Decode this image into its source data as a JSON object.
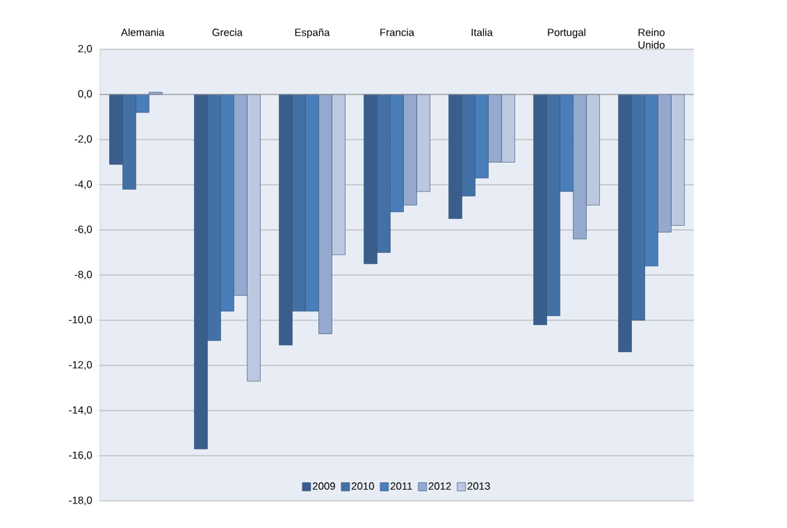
{
  "chart_data": {
    "type": "bar",
    "categories": [
      "Alemania",
      "Grecia",
      "España",
      "Francia",
      "Italia",
      "Portugal",
      "Reino Unido"
    ],
    "series": [
      {
        "name": "2009",
        "color": "#3a5e8c",
        "values": [
          -3.1,
          -15.7,
          -11.1,
          -7.5,
          -5.5,
          -10.2,
          -11.4
        ]
      },
      {
        "name": "2010",
        "color": "#4371a6",
        "values": [
          -4.2,
          -10.9,
          -9.6,
          -7.0,
          -4.5,
          -9.8,
          -10.0
        ]
      },
      {
        "name": "2011",
        "color": "#4a7ebb",
        "values": [
          -0.8,
          -9.6,
          -9.6,
          -5.2,
          -3.7,
          -4.3,
          -7.6
        ]
      },
      {
        "name": "2012",
        "color": "#95a9cf",
        "values": [
          0.1,
          -8.9,
          -10.6,
          -4.9,
          -3.0,
          -6.4,
          -6.1
        ]
      },
      {
        "name": "2013",
        "color": "#bbc8e0",
        "values": [
          null,
          -12.7,
          -7.1,
          -4.3,
          -3.0,
          -4.9,
          -5.8
        ]
      }
    ],
    "ylim": [
      -18,
      2
    ],
    "yticks": [
      {
        "value": 2,
        "label": "2,0"
      },
      {
        "value": 0,
        "label": "0,0"
      },
      {
        "value": -2,
        "label": "-2,0"
      },
      {
        "value": -4,
        "label": "-4,0"
      },
      {
        "value": -6,
        "label": "-6,0"
      },
      {
        "value": -8,
        "label": "-8,0"
      },
      {
        "value": -10,
        "label": "-10,0"
      },
      {
        "value": -12,
        "label": "-12,0"
      },
      {
        "value": -14,
        "label": "-14,0"
      },
      {
        "value": -16,
        "label": "-16,0"
      },
      {
        "value": -18,
        "label": "-18,0"
      }
    ],
    "grid": "y",
    "legend": "bottom"
  }
}
